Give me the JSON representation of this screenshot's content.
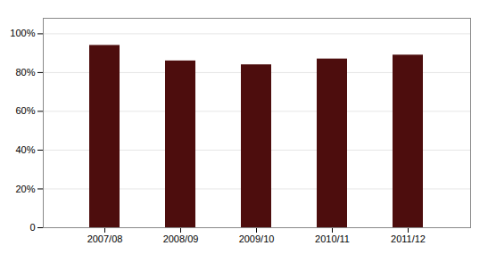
{
  "chart_data": {
    "type": "bar",
    "categories": [
      "2007/08",
      "2008/09",
      "2009/10",
      "2010/11",
      "2011/12"
    ],
    "values": [
      0.94,
      0.86,
      0.84,
      0.87,
      0.89
    ],
    "color": "#4d0d0d",
    "ylim": [
      0,
      1.08
    ],
    "yticks": [
      0,
      {
        "value": 0.2,
        "label": "20%"
      },
      {
        "value": 0.4,
        "label": "40%"
      },
      {
        "value": 0.6,
        "label": "60%"
      },
      {
        "value": 0.8,
        "label": "80%"
      },
      {
        "value": 1.0,
        "label": "100%"
      }
    ],
    "grid": true
  }
}
